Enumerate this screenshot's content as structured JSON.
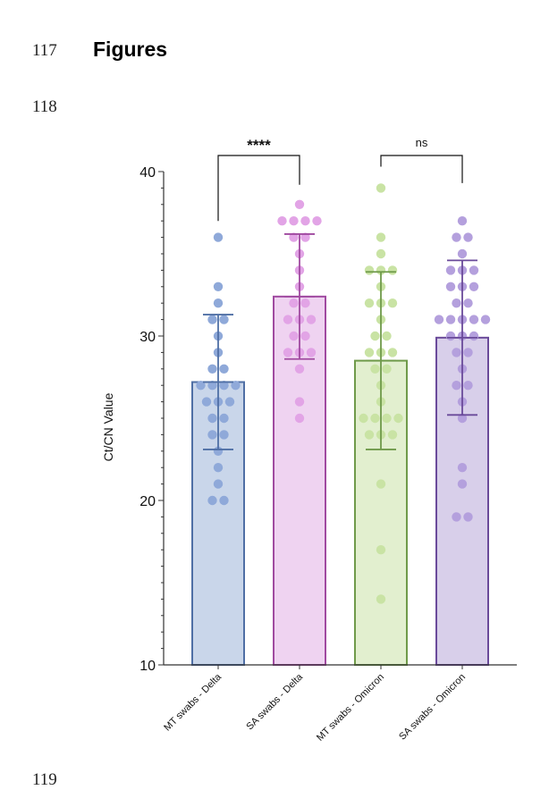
{
  "page": {
    "line_numbers": [
      "117",
      "118",
      "119"
    ],
    "heading": "Figures"
  },
  "chart_data": {
    "type": "bar",
    "ylabel": "Ct/CN Value",
    "xlabel": "",
    "ylim": [
      10,
      40
    ],
    "yticks": [
      10,
      20,
      30,
      40
    ],
    "grid": false,
    "categories": [
      "MT swabs - Delta",
      "SA swabs - Delta",
      "MT swabs - Omicron",
      "SA swabs - Omicron"
    ],
    "means": [
      27.2,
      32.4,
      28.5,
      29.9
    ],
    "sd": [
      4.1,
      3.8,
      5.4,
      4.7
    ],
    "colors": {
      "fill": [
        "#c9d6ea",
        "#efd3f1",
        "#e2efcf",
        "#d8cfea"
      ],
      "edge": [
        "#4f6fa5",
        "#a04aa0",
        "#6f9a4a",
        "#6a4a9a"
      ],
      "points": [
        "#8fa9d9",
        "#e2a4e6",
        "#c9e3a4",
        "#b4a0dd"
      ]
    },
    "points": [
      [
        36,
        33,
        32,
        31,
        31,
        30,
        29,
        28,
        28,
        27,
        27,
        27,
        27,
        26,
        26,
        26,
        25,
        25,
        24,
        24,
        23,
        22,
        21,
        20,
        20
      ],
      [
        38,
        37,
        37,
        37,
        37,
        36,
        36,
        35,
        34,
        33,
        32,
        32,
        31,
        31,
        31,
        30,
        30,
        29,
        29,
        29,
        28,
        26,
        25
      ],
      [
        39,
        36,
        35,
        34,
        34,
        34,
        33,
        32,
        32,
        32,
        31,
        30,
        30,
        29,
        29,
        29,
        28,
        28,
        27,
        26,
        25,
        25,
        25,
        25,
        24,
        24,
        24,
        21,
        17,
        14
      ],
      [
        37,
        36,
        36,
        35,
        34,
        34,
        34,
        33,
        33,
        33,
        32,
        32,
        31,
        31,
        31,
        31,
        31,
        30,
        30,
        30,
        29,
        29,
        28,
        27,
        27,
        26,
        25,
        22,
        21,
        19,
        19
      ]
    ],
    "comparisons": [
      {
        "groups": [
          0,
          1
        ],
        "label": "****"
      },
      {
        "groups": [
          2,
          3
        ],
        "label": "ns"
      }
    ]
  }
}
